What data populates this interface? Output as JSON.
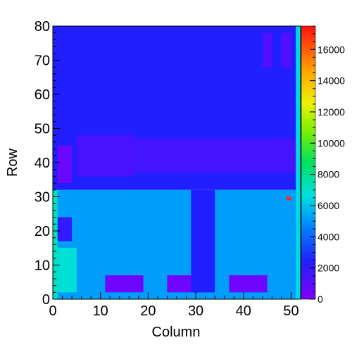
{
  "chart_data": {
    "type": "heatmap",
    "title": "",
    "xlabel": "Column",
    "ylabel": "Row",
    "xlim": [
      0,
      52
    ],
    "ylim": [
      0,
      80
    ],
    "x_ticks": [
      "0",
      "10",
      "20",
      "30",
      "40",
      "50"
    ],
    "y_ticks": [
      "0",
      "10",
      "20",
      "30",
      "40",
      "50",
      "60",
      "70",
      "80"
    ],
    "z_range": [
      0,
      17500
    ],
    "colorbar_ticks": [
      "0",
      "2000",
      "4000",
      "6000",
      "8000",
      "10000",
      "12000",
      "14000",
      "16000"
    ],
    "colormap": "rainbow (violet-blue-cyan-green-yellow-orange-red)",
    "grid": false,
    "regions": [
      {
        "note": "background, rows 32-80",
        "x": [
          0,
          52
        ],
        "y": [
          32,
          80
        ],
        "value": 2400
      },
      {
        "note": "background, rows 0-32",
        "x": [
          0,
          52
        ],
        "y": [
          0,
          32
        ],
        "value": 5200
      },
      {
        "note": "dark band",
        "x": [
          5,
          17
        ],
        "y": [
          36,
          48
        ],
        "value": 1400
      },
      {
        "note": "dark band",
        "x": [
          17,
          52
        ],
        "y": [
          37,
          47
        ],
        "value": 1500
      },
      {
        "note": "violet block",
        "x": [
          1,
          4
        ],
        "y": [
          34,
          45
        ],
        "value": 500
      },
      {
        "note": "lower-left column",
        "x": [
          0,
          1
        ],
        "y": [
          0,
          32
        ],
        "value": 7200
      },
      {
        "note": "lower-left blue",
        "x": [
          1,
          4
        ],
        "y": [
          17,
          24
        ],
        "value": 2000
      },
      {
        "note": "lower-left green",
        "x": [
          1,
          5
        ],
        "y": [
          2,
          15
        ],
        "value": 6800
      },
      {
        "note": "violet block",
        "x": [
          11,
          19
        ],
        "y": [
          2,
          7
        ],
        "value": 400
      },
      {
        "note": "violet block",
        "x": [
          24,
          32
        ],
        "y": [
          2,
          7
        ],
        "value": 400
      },
      {
        "note": "violet block",
        "x": [
          37,
          45
        ],
        "y": [
          2,
          7
        ],
        "value": 400
      },
      {
        "note": "dark column",
        "x": [
          29,
          34
        ],
        "y": [
          2,
          32
        ],
        "value": 2400
      },
      {
        "note": "upper-right dark",
        "x": [
          44,
          46
        ],
        "y": [
          68,
          78
        ],
        "value": 1200
      },
      {
        "note": "upper-right dark",
        "x": [
          48,
          50
        ],
        "y": [
          68,
          78
        ],
        "value": 1200
      },
      {
        "note": "hot pixel",
        "x": [
          49,
          50
        ],
        "y": [
          29,
          30
        ],
        "value": 17000
      },
      {
        "note": "border column",
        "x": [
          51,
          52
        ],
        "y": [
          0,
          80
        ],
        "value": 6500
      }
    ]
  }
}
